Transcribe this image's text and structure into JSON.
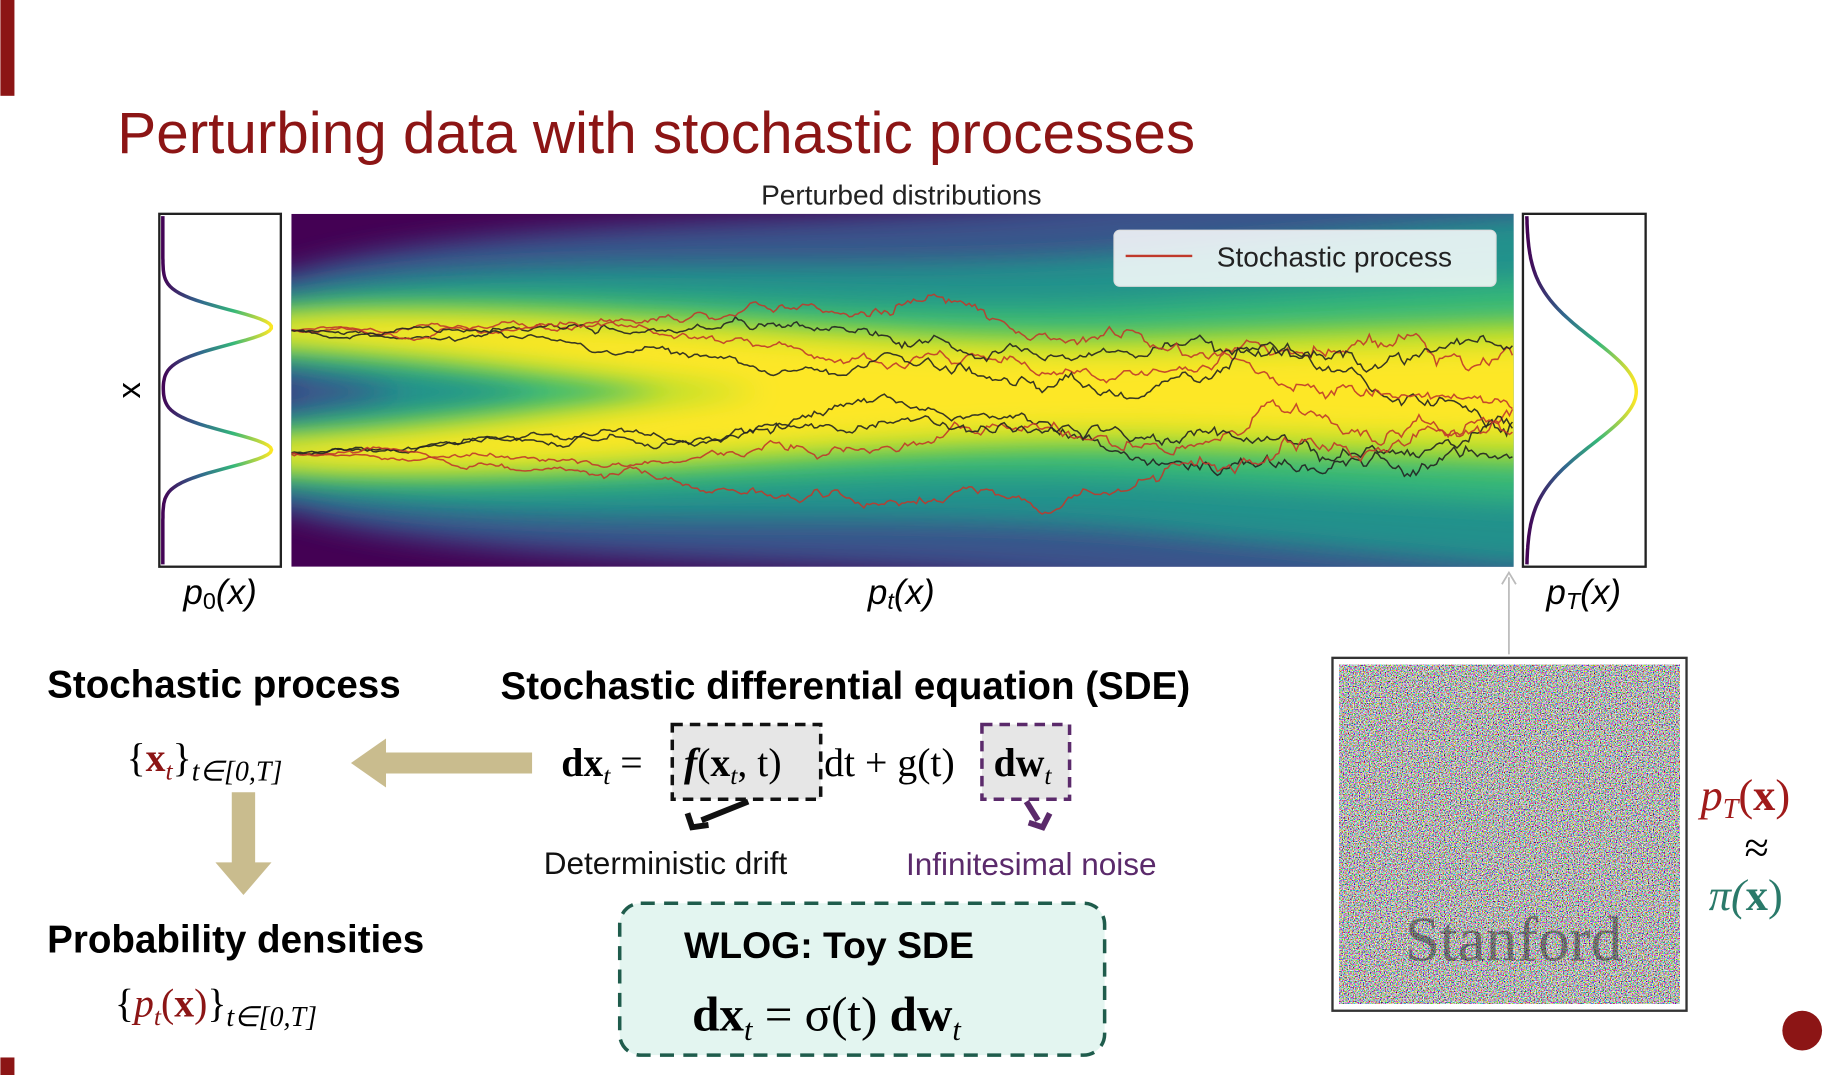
{
  "slide": {
    "title": "Perturbing data with stochastic processes",
    "plot": {
      "title": "Perturbed distributions",
      "legend": "Stochastic process",
      "axis_label": "x",
      "p0": [
        "p",
        "0",
        "(x)"
      ],
      "pt": [
        "p",
        "t",
        "(x)"
      ],
      "pT": [
        "p",
        "T",
        "(x)"
      ]
    },
    "stochastic_process": {
      "heading": "Stochastic process",
      "expr": [
        "{",
        "x",
        "t",
        "}",
        "t∈[0,T]"
      ]
    },
    "probability_densities": {
      "heading": "Probability densities",
      "expr": [
        "{",
        "p",
        "t",
        "(",
        "x",
        ")",
        "}",
        "t∈[0,T]"
      ]
    },
    "sde": {
      "heading": "Stochastic differential equation (SDE)",
      "lhs": [
        "dx",
        "t",
        " ="
      ],
      "drift": [
        "f",
        "(",
        "x",
        "t",
        ", t)"
      ],
      "middle": "dt + g(t)",
      "noise": [
        "dw",
        "t"
      ],
      "drift_label": "Deterministic drift",
      "noise_label": "Infinitesimal noise"
    },
    "toy_sde": {
      "heading": "WLOG: Toy SDE",
      "equation": [
        "dx",
        "t",
        " = σ(t) ",
        "dw",
        "t"
      ]
    },
    "noise_image": {
      "watermark": "Stanford"
    },
    "prior": {
      "pT": [
        "p",
        "T",
        "(",
        "x",
        ")"
      ],
      "approx": "≈",
      "pi": [
        "π(",
        "x",
        ")"
      ]
    }
  }
}
